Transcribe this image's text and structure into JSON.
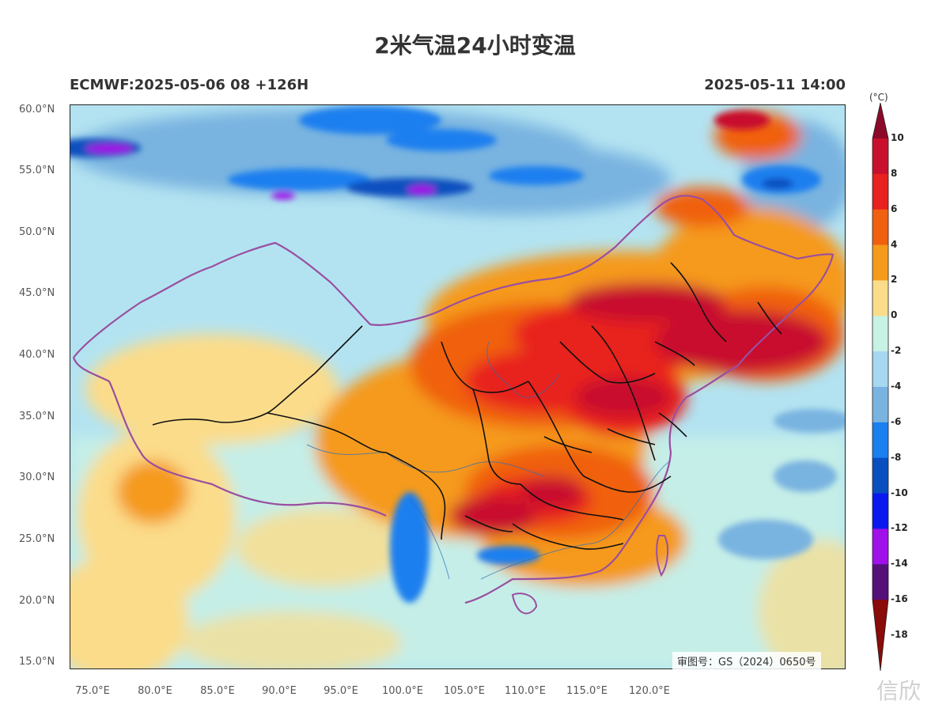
{
  "title": "2米气温24小时变温",
  "model_run": "ECMWF:2025-05-06 08 +126H",
  "valid_time": "2025-05-11 14:00",
  "lat_labels": [
    "60.0°N",
    "55.0°N",
    "50.0°N",
    "45.0°N",
    "40.0°N",
    "35.0°N",
    "30.0°N",
    "25.0°N",
    "20.0°N",
    "15.0°N"
  ],
  "lon_labels": [
    "75.0°E",
    "80.0°E",
    "85.0°E",
    "90.0°E",
    "95.0°E",
    "100.0°E",
    "105.0°E",
    "110.0°E",
    "115.0°E",
    "120.0°E"
  ],
  "colorbar": {
    "unit": "(°C)",
    "labels": [
      "10",
      "8",
      "6",
      "4",
      "2",
      "0",
      "-2",
      "-4",
      "-6",
      "-8",
      "-10",
      "-12",
      "-14",
      "-16",
      "-18"
    ],
    "colors": [
      "#8b0a2a",
      "#c8102e",
      "#e8201e",
      "#f06010",
      "#f59a1a",
      "#fbdc8a",
      "#c7f2e4",
      "#a6d8f0",
      "#79b3e0",
      "#1a7fef",
      "#0a4fbf",
      "#0a1aef",
      "#a010e8",
      "#55107a",
      "#8b0a0a"
    ]
  },
  "approval_number": "审图号：GS（2024）0650号",
  "watermark": "信欣"
}
